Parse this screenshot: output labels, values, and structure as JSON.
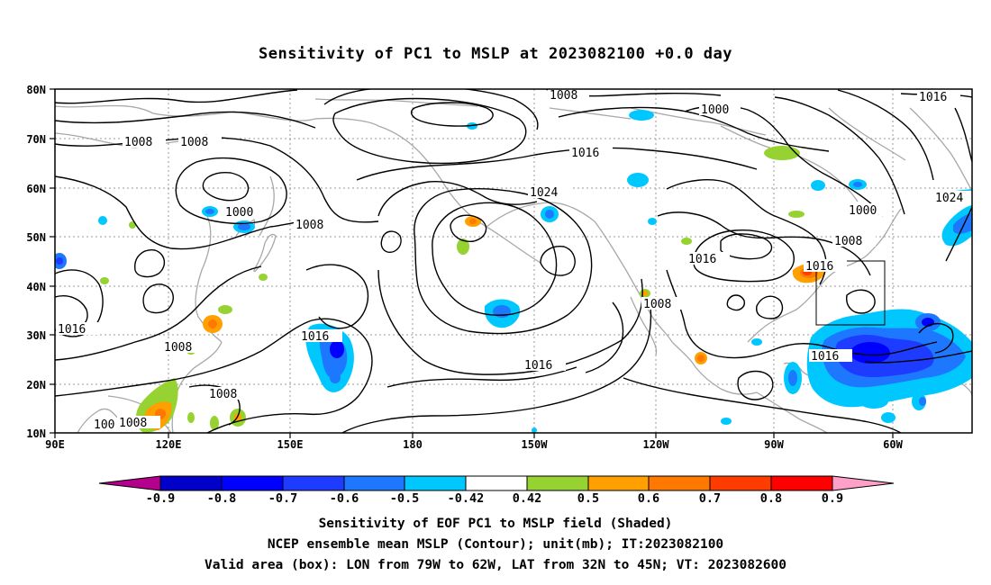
{
  "title": "Sensitivity of PC1 to MSLP at 2023082100 +0.0 day",
  "lat_labels": [
    "80N",
    "70N",
    "60N",
    "50N",
    "40N",
    "30N",
    "20N",
    "10N"
  ],
  "lon_labels": [
    "90E",
    "120E",
    "150E",
    "180",
    "150W",
    "120W",
    "90W",
    "60W"
  ],
  "contour_labels": [
    "1008",
    "1016",
    "1008",
    "1000",
    "1000",
    "1008",
    "1016",
    "1024",
    "1024",
    "1000",
    "1008",
    "1016",
    "1016",
    "1008",
    "1016",
    "1016",
    "1008",
    "1016",
    "1016",
    "1008",
    "1008",
    "100",
    "1008"
  ],
  "colorbar": {
    "labels": [
      "-0.9",
      "-0.8",
      "-0.7",
      "-0.6",
      "-0.5",
      "-0.42",
      "0.42",
      "0.5",
      "0.6",
      "0.7",
      "0.8",
      "0.9"
    ],
    "colors": [
      "#b4008c",
      "#0000c8",
      "#0000ff",
      "#1e3cff",
      "#1e78ff",
      "#00c8ff",
      "#ffffff",
      "#96d232",
      "#ffa000",
      "#ff7800",
      "#ff3c00",
      "#ff0000",
      "#ffa0c8"
    ]
  },
  "captions": [
    "Sensitivity of EOF PC1 to MSLP field (Shaded)",
    "NCEP ensemble mean MSLP (Contour); unit(mb); IT:2023082100",
    "Valid area (box): LON from 79W to 62W, LAT from 32N to 45N; VT: 2023082600"
  ]
}
